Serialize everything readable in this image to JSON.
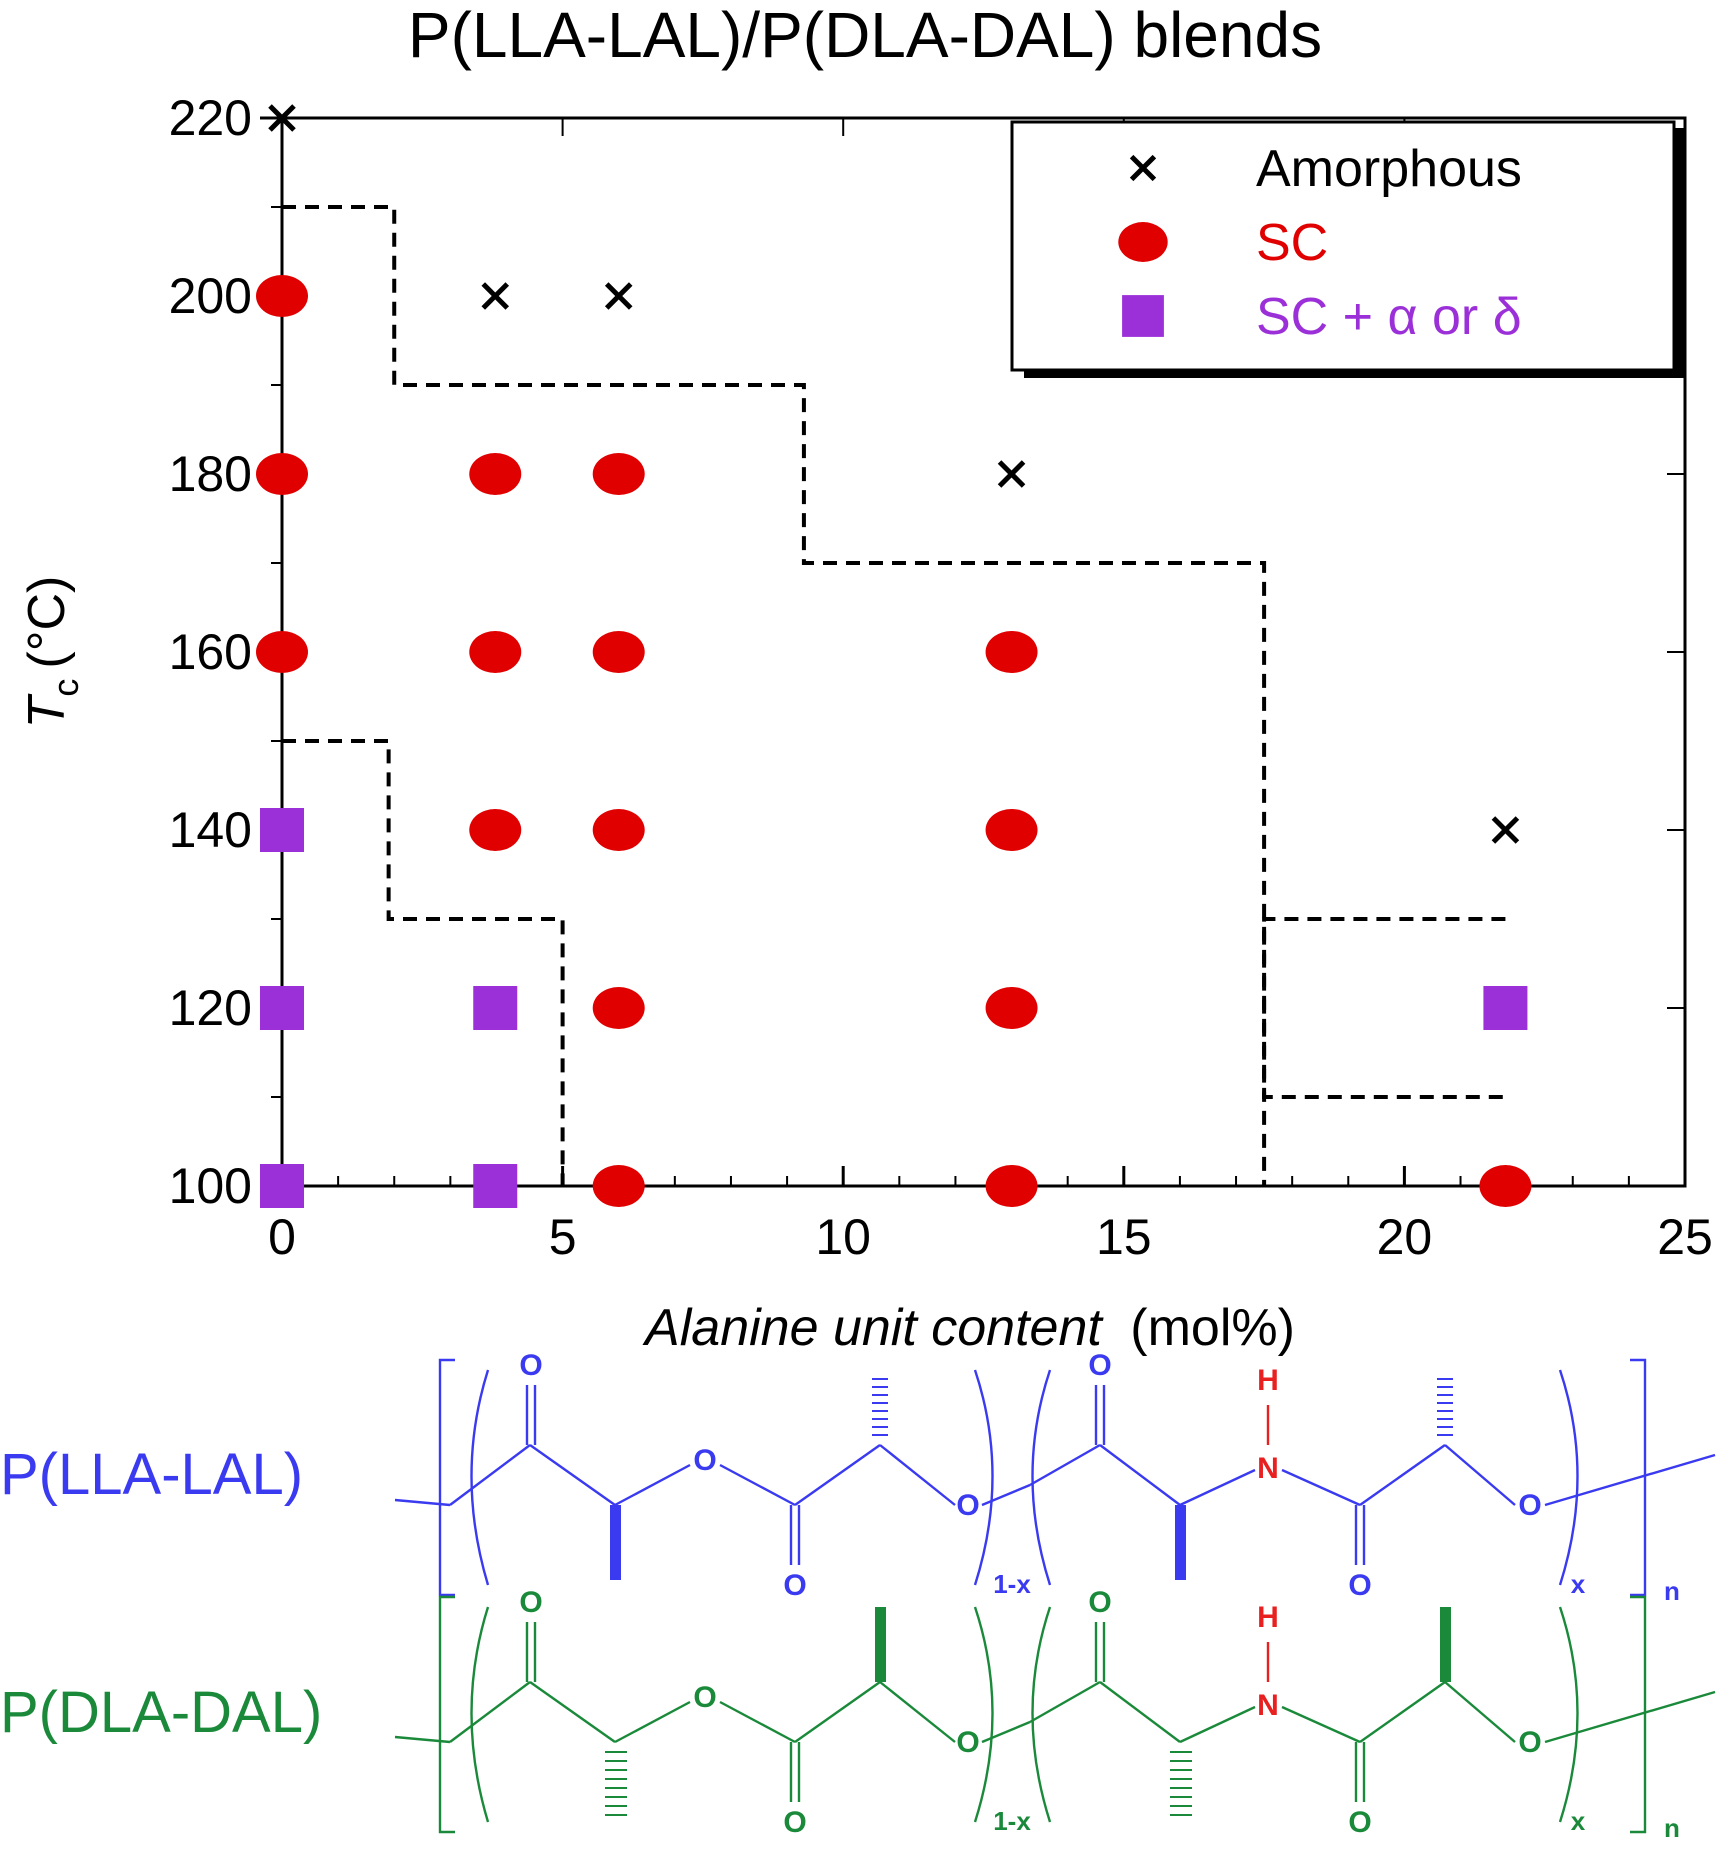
{
  "chart_data": {
    "type": "scatter",
    "title": "P(LLA-LAL)/P(DLA-DAL) blends",
    "xlabel_italic": "Alanine unit content",
    "xlabel_unit": "(mol%)",
    "ylabel_symbol": "T",
    "ylabel_subscript": "c",
    "ylabel_unit": "(°C)",
    "xlim": [
      0,
      25
    ],
    "ylim": [
      100,
      220
    ],
    "xticks": [
      "0",
      "5",
      "10",
      "15",
      "20",
      "25"
    ],
    "yticks": [
      "100",
      "120",
      "140",
      "160",
      "180",
      "200",
      "220"
    ],
    "legend_position": "top-right",
    "series": [
      {
        "name": "Amorphous",
        "marker": "x",
        "color": "#000000",
        "points": [
          [
            0,
            220
          ],
          [
            3.8,
            200
          ],
          [
            6.0,
            200
          ],
          [
            13.0,
            180
          ],
          [
            21.8,
            140
          ]
        ]
      },
      {
        "name": "SC",
        "marker": "circle",
        "color": "#e00000",
        "points": [
          [
            0,
            200
          ],
          [
            0,
            180
          ],
          [
            0,
            160
          ],
          [
            3.8,
            180
          ],
          [
            3.8,
            160
          ],
          [
            3.8,
            140
          ],
          [
            6.0,
            180
          ],
          [
            6.0,
            160
          ],
          [
            6.0,
            140
          ],
          [
            6.0,
            120
          ],
          [
            6.0,
            100
          ],
          [
            13.0,
            160
          ],
          [
            13.0,
            140
          ],
          [
            13.0,
            120
          ],
          [
            13.0,
            100
          ],
          [
            21.8,
            100
          ]
        ]
      },
      {
        "name": "SC + α or δ",
        "marker": "square",
        "color": "#9b30d9",
        "points": [
          [
            0,
            140
          ],
          [
            0,
            120
          ],
          [
            0,
            100
          ],
          [
            3.8,
            120
          ],
          [
            3.8,
            100
          ],
          [
            21.8,
            120
          ]
        ]
      }
    ],
    "boundaries": [
      {
        "points": [
          [
            0,
            210
          ],
          [
            2,
            210
          ],
          [
            2,
            190
          ],
          [
            9.3,
            190
          ],
          [
            9.3,
            170
          ],
          [
            17.5,
            170
          ],
          [
            17.5,
            100
          ]
        ]
      },
      {
        "points": [
          [
            0,
            150
          ],
          [
            1.9,
            150
          ],
          [
            1.9,
            130
          ],
          [
            5.0,
            130
          ],
          [
            5.0,
            100
          ]
        ]
      },
      {
        "points": [
          [
            21.8,
            130
          ],
          [
            17.5,
            130
          ],
          [
            17.5,
            110
          ],
          [
            21.8,
            110
          ]
        ]
      }
    ]
  },
  "structures": {
    "lla_label": "P(LLA-LAL)",
    "dla_label": "P(DLA-DAL)",
    "lla_color": "#3a3af0",
    "dla_color": "#1a8a3a",
    "nh_color": "#e82020",
    "atom_o": "O",
    "atom_n": "N",
    "atom_h": "H",
    "sub_1x": "1-x",
    "sub_x": "x",
    "sub_n": "n"
  }
}
